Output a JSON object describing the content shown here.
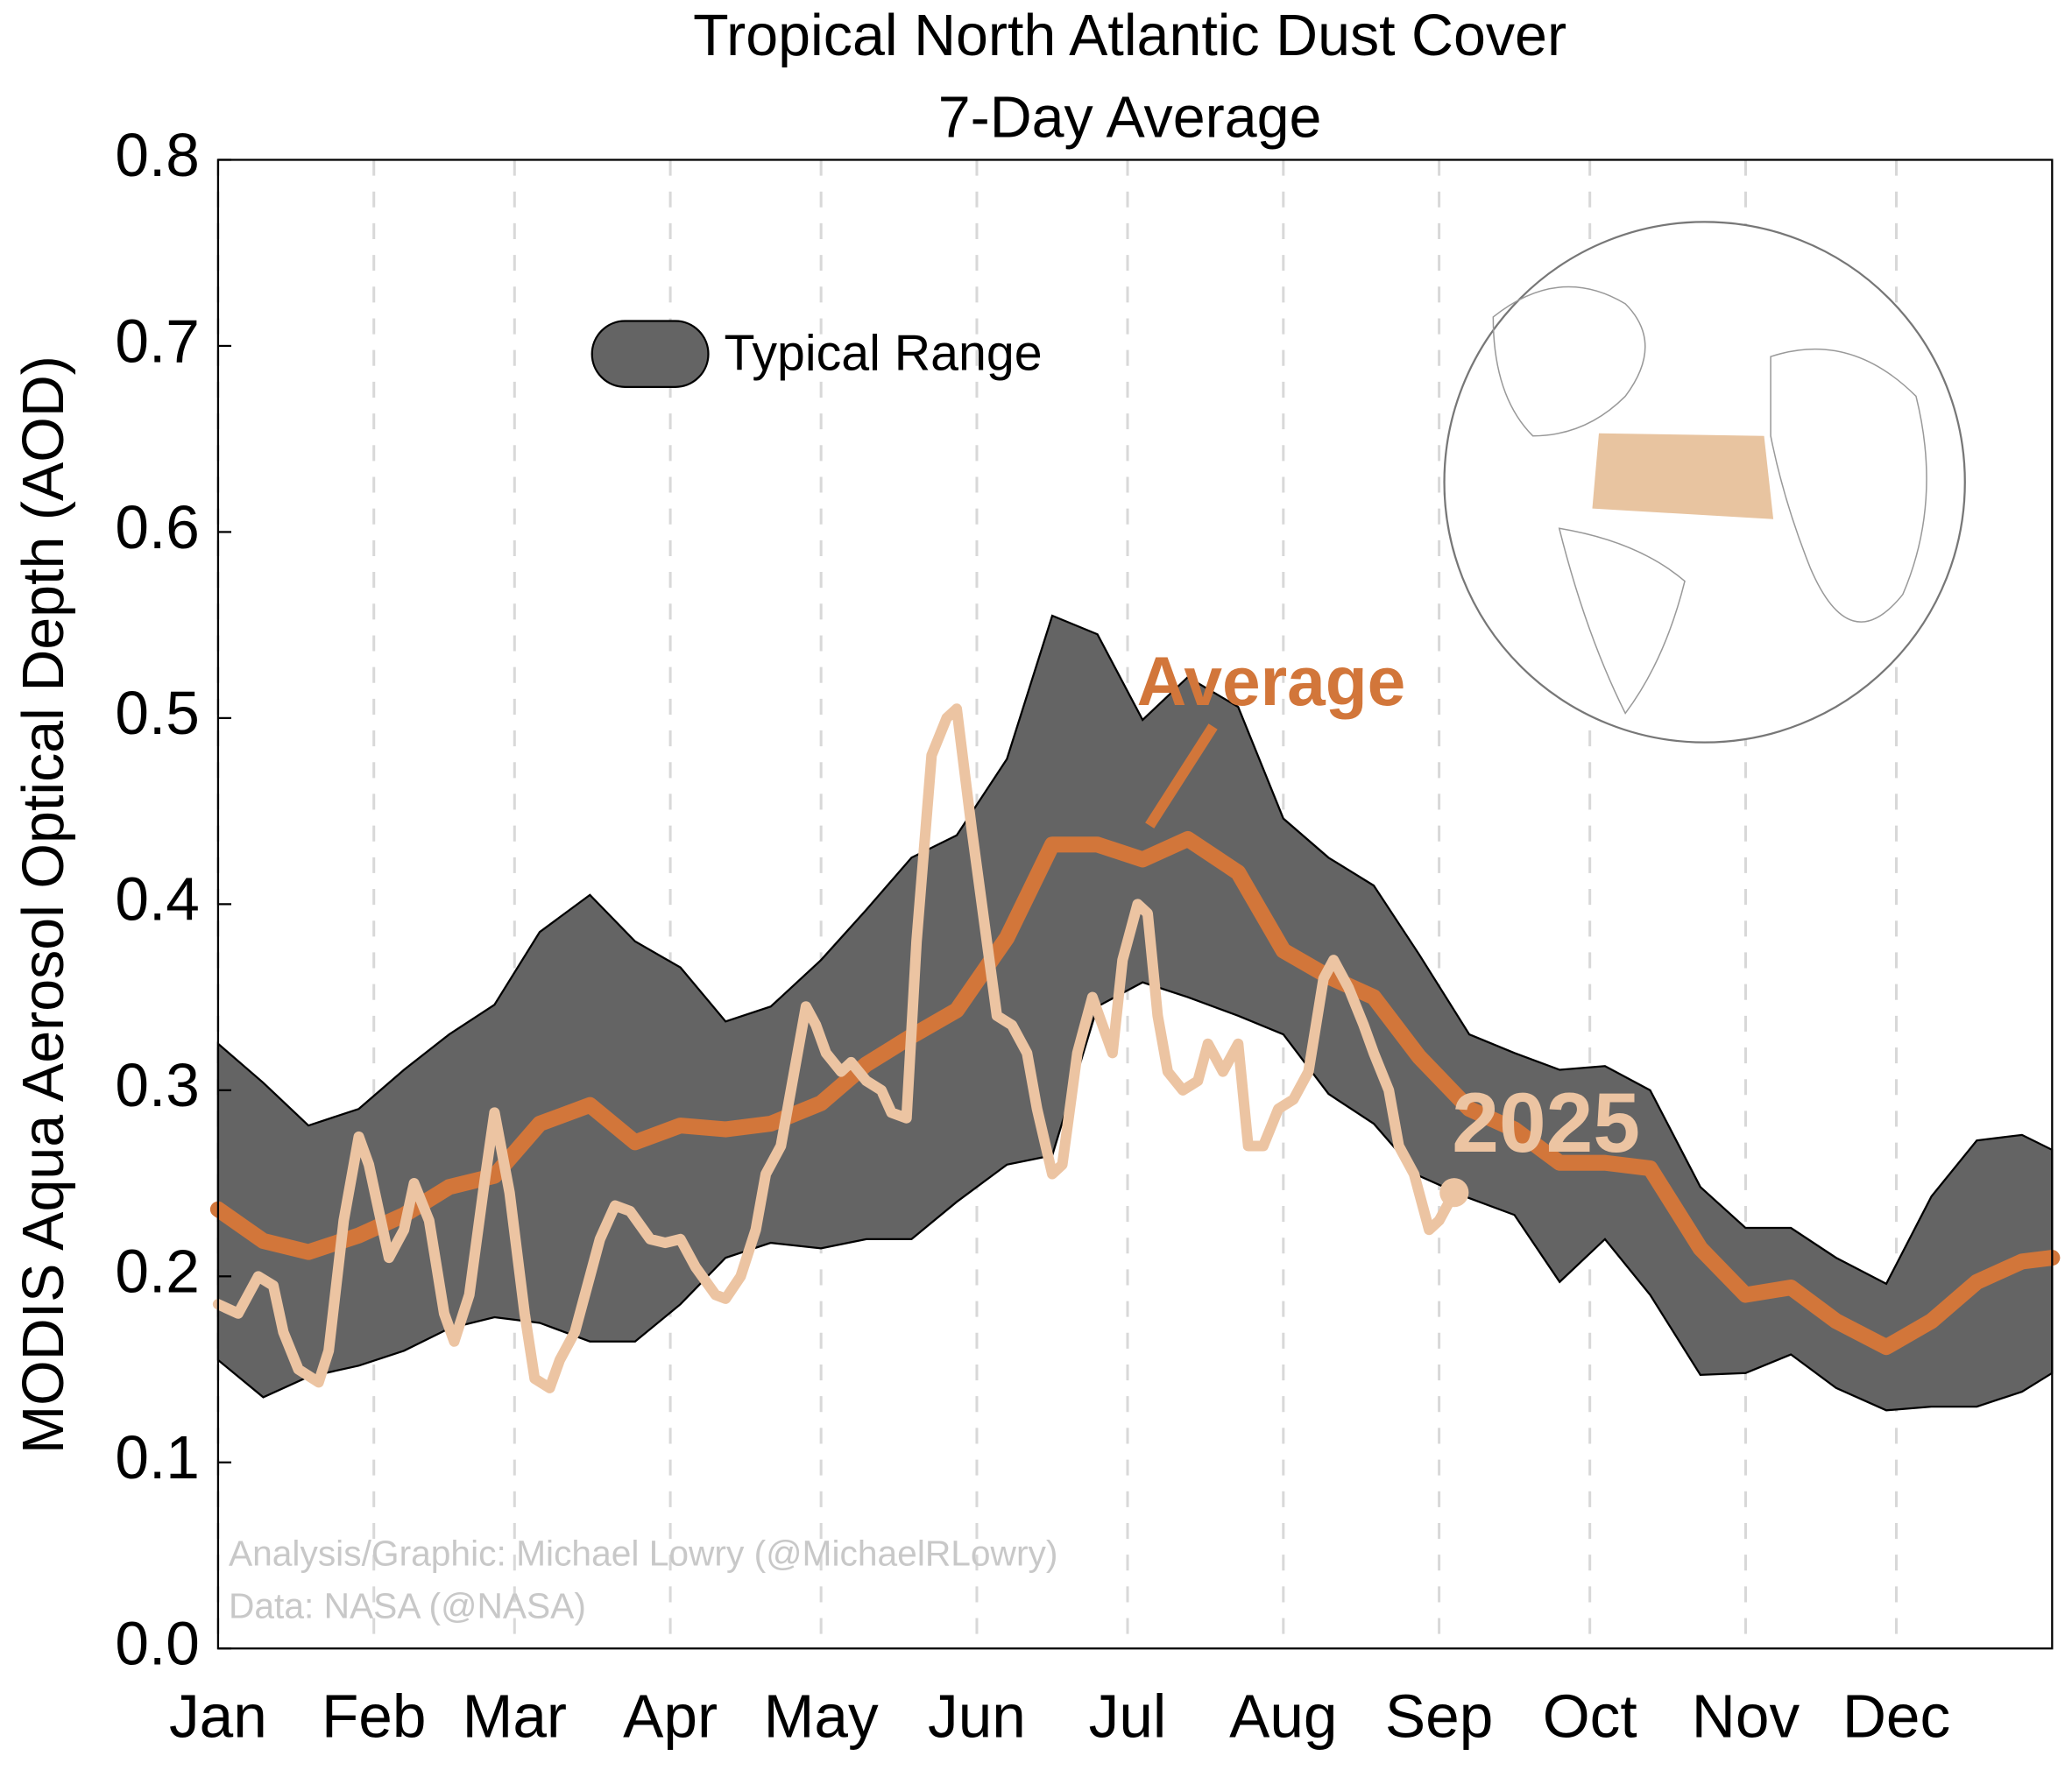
{
  "chart_data": {
    "type": "line",
    "title": "Tropical North Atlantic Dust Cover",
    "subtitle": "7-Day Average",
    "ylabel": "MODIS Aqua Aerosol Optical Depth (AOD)",
    "xlim": [
      1,
      366
    ],
    "xticks": [
      {
        "value": 1,
        "label": "Jan"
      },
      {
        "value": 32,
        "label": "Feb"
      },
      {
        "value": 60,
        "label": "Mar"
      },
      {
        "value": 91,
        "label": "Apr"
      },
      {
        "value": 121,
        "label": "May"
      },
      {
        "value": 152,
        "label": "Jun"
      },
      {
        "value": 182,
        "label": "Jul"
      },
      {
        "value": 213,
        "label": "Aug"
      },
      {
        "value": 244,
        "label": "Sep"
      },
      {
        "value": 274,
        "label": "Oct"
      },
      {
        "value": 305,
        "label": "Nov"
      },
      {
        "value": 335,
        "label": "Dec"
      }
    ],
    "ylim": [
      0,
      0.8
    ],
    "yticks": [
      {
        "value": 0,
        "label": "0.0"
      },
      0.1,
      0.2,
      0.3,
      0.4,
      0.5,
      0.6,
      0.7,
      0.8
    ],
    "grid": true,
    "x": [
      1,
      10,
      19,
      29,
      38,
      47,
      56,
      65,
      75,
      84,
      93,
      102,
      111,
      121,
      130,
      139,
      148,
      158,
      167,
      176,
      185,
      194,
      204,
      213,
      222,
      231,
      240,
      250,
      259,
      268,
      277,
      286,
      296,
      305,
      314,
      323,
      333,
      342,
      351,
      360,
      366
    ],
    "band": {
      "name": "Typical Range",
      "color": "#646464",
      "upper": [
        0.325,
        0.304,
        0.281,
        0.29,
        0.311,
        0.33,
        0.346,
        0.385,
        0.405,
        0.38,
        0.366,
        0.337,
        0.345,
        0.37,
        0.397,
        0.425,
        0.437,
        0.478,
        0.555,
        0.545,
        0.499,
        0.522,
        0.506,
        0.446,
        0.425,
        0.41,
        0.373,
        0.33,
        0.32,
        0.311,
        0.313,
        0.3,
        0.248,
        0.226,
        0.226,
        0.21,
        0.196,
        0.243,
        0.273,
        0.276,
        0.268
      ],
      "lower": [
        0.155,
        0.135,
        0.146,
        0.152,
        0.16,
        0.172,
        0.178,
        0.175,
        0.165,
        0.165,
        0.185,
        0.21,
        0.218,
        0.215,
        0.22,
        0.22,
        0.24,
        0.26,
        0.265,
        0.345,
        0.358,
        0.35,
        0.34,
        0.33,
        0.298,
        0.282,
        0.254,
        0.242,
        0.233,
        0.197,
        0.22,
        0.19,
        0.147,
        0.148,
        0.158,
        0.14,
        0.128,
        0.13,
        0.13,
        0.138,
        0.148
      ]
    },
    "series": [
      {
        "name": "Average",
        "color": "#d2763a",
        "values": [
          0.236,
          0.219,
          0.213,
          0.222,
          0.233,
          0.248,
          0.254,
          0.282,
          0.292,
          0.272,
          0.281,
          0.279,
          0.282,
          0.293,
          0.314,
          0.329,
          0.343,
          0.382,
          0.432,
          0.432,
          0.424,
          0.435,
          0.417,
          0.375,
          0.361,
          0.35,
          0.318,
          0.29,
          0.279,
          0.261,
          0.261,
          0.258,
          0.215,
          0.19,
          0.194,
          0.176,
          0.162,
          0.176,
          0.197,
          0.208,
          0.21
        ]
      },
      {
        "name": "2025",
        "color": "#ecc4a2",
        "x": [
          1,
          5,
          9,
          12,
          14,
          17,
          21,
          23,
          26,
          29,
          31,
          35,
          38,
          40,
          43,
          46,
          48,
          51,
          54,
          56,
          59,
          62,
          64,
          67,
          69,
          72,
          75,
          77,
          80,
          83,
          87,
          90,
          93,
          96,
          100,
          102,
          105,
          108,
          110,
          113,
          115,
          118,
          120,
          122,
          125,
          127,
          130,
          133,
          135,
          138,
          140,
          143,
          146,
          148,
          151,
          154,
          156,
          159,
          162,
          164,
          167,
          169,
          172,
          175,
          177,
          179,
          181,
          184,
          186,
          188,
          190,
          193,
          196,
          198,
          201,
          204,
          206,
          209,
          212,
          215,
          218,
          221,
          223,
          226,
          229,
          231,
          234,
          236,
          239,
          242,
          244,
          247
        ],
        "values": [
          0.185,
          0.18,
          0.2,
          0.195,
          0.17,
          0.15,
          0.143,
          0.16,
          0.23,
          0.275,
          0.26,
          0.21,
          0.225,
          0.25,
          0.23,
          0.18,
          0.165,
          0.19,
          0.25,
          0.288,
          0.245,
          0.18,
          0.145,
          0.14,
          0.155,
          0.17,
          0.2,
          0.22,
          0.238,
          0.235,
          0.22,
          0.218,
          0.22,
          0.205,
          0.19,
          0.188,
          0.2,
          0.225,
          0.255,
          0.27,
          0.3,
          0.345,
          0.335,
          0.32,
          0.31,
          0.315,
          0.305,
          0.3,
          0.288,
          0.285,
          0.38,
          0.48,
          0.5,
          0.505,
          0.44,
          0.38,
          0.34,
          0.335,
          0.32,
          0.29,
          0.255,
          0.26,
          0.32,
          0.35,
          0.335,
          0.32,
          0.37,
          0.4,
          0.395,
          0.34,
          0.31,
          0.3,
          0.305,
          0.325,
          0.31,
          0.325,
          0.27,
          0.27,
          0.29,
          0.295,
          0.31,
          0.36,
          0.37,
          0.355,
          0.335,
          0.32,
          0.3,
          0.27,
          0.255,
          0.225,
          0.23,
          0.245
        ]
      }
    ],
    "annotations": [
      "Analysis/Graphic: Michael Lowry (@MichaelRLowry)",
      "Data: NASA (@NASA)"
    ]
  }
}
